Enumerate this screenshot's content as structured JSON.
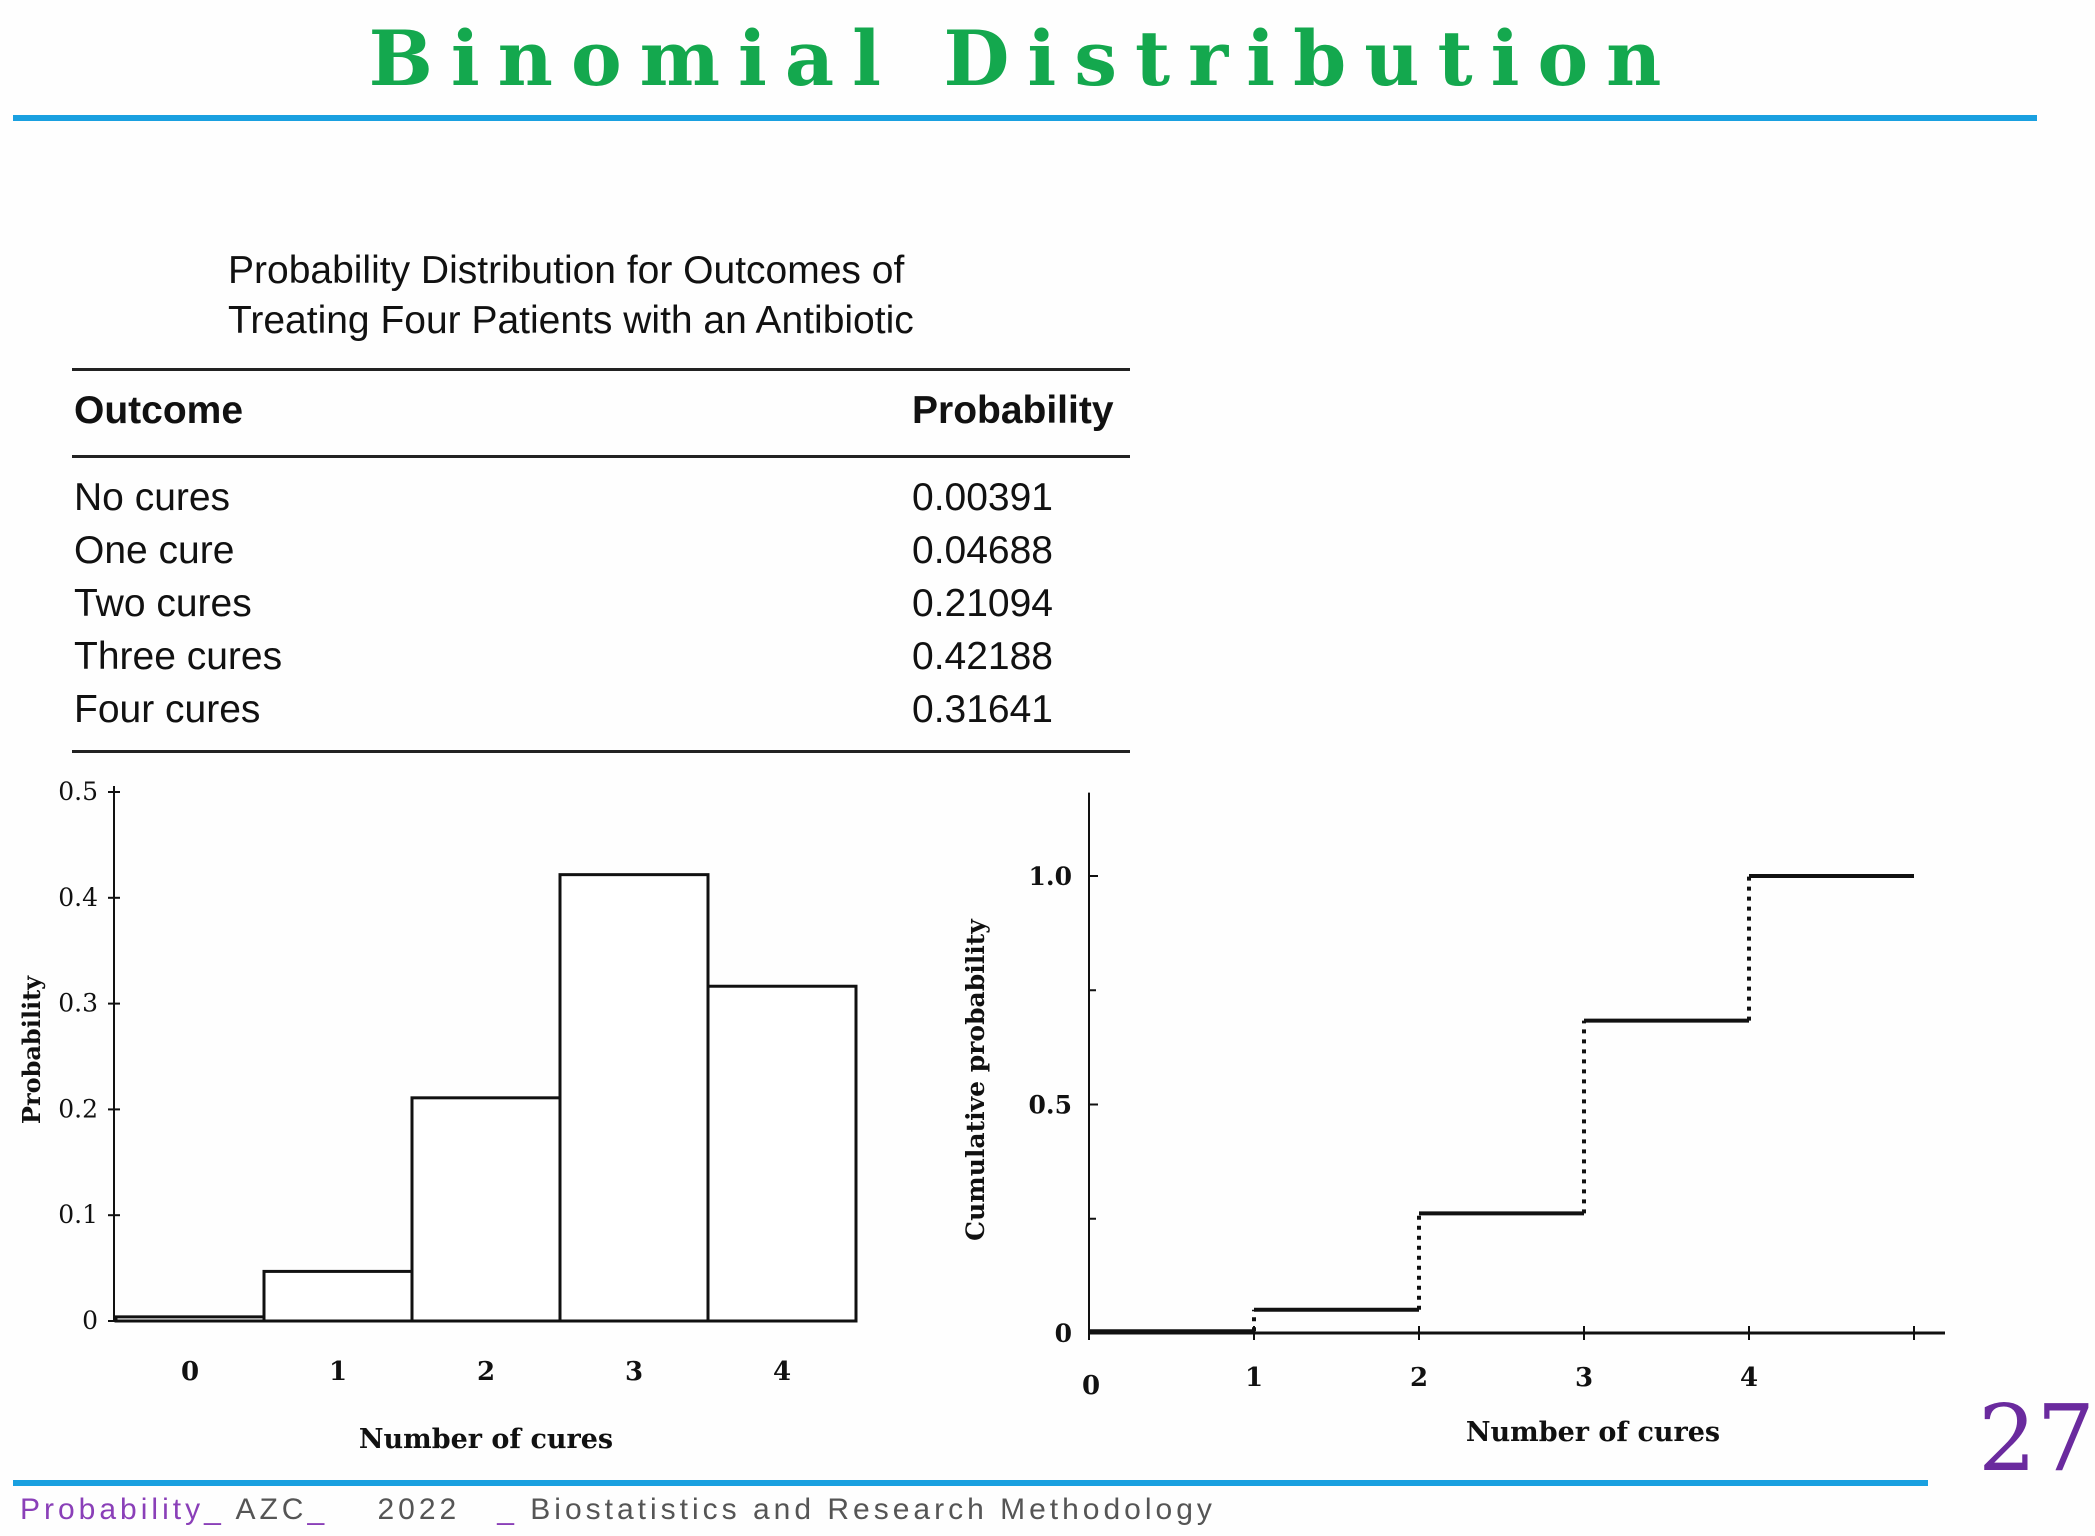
{
  "slide": {
    "title": "Binomial Distribution"
  },
  "table": {
    "title_line1": "Probability Distribution for Outcomes of",
    "title_line2": "Treating Four Patients with an Antibiotic",
    "headers": [
      "Outcome",
      "Probability"
    ],
    "rows": [
      {
        "outcome": "No cures",
        "probability": "0.00391"
      },
      {
        "outcome": "One cure",
        "probability": "0.04688"
      },
      {
        "outcome": "Two cures",
        "probability": "0.21094"
      },
      {
        "outcome": "Three cures",
        "probability": "0.42188"
      },
      {
        "outcome": "Four cures",
        "probability": "0.31641"
      }
    ]
  },
  "chart_data": [
    {
      "type": "bar",
      "categories": [
        "0",
        "1",
        "2",
        "3",
        "4"
      ],
      "values": [
        0.00391,
        0.04688,
        0.21094,
        0.42188,
        0.31641
      ],
      "xlabel": "Number of cures",
      "ylabel": "Probability",
      "ylim": [
        0,
        0.5
      ],
      "yticks": [
        0,
        0.1,
        0.2,
        0.3,
        0.4,
        0.5
      ],
      "ytick_labels": [
        "0",
        "0.1",
        "0.2",
        "0.3",
        "0.4",
        "0.5"
      ],
      "grid": false
    },
    {
      "type": "line",
      "style": "step",
      "x": [
        0,
        1,
        2,
        3,
        4
      ],
      "values": [
        0.00391,
        0.05079,
        0.26173,
        0.68361,
        1.0
      ],
      "xlim": [
        0,
        5
      ],
      "xtick_labels": [
        "0",
        "1",
        "2",
        "3",
        "4"
      ],
      "xlabel": "Number of cures",
      "ylabel": "Cumulative probability",
      "ylim": [
        0,
        1.2
      ],
      "ytick_labels": [
        "0",
        "0.5",
        "1.0"
      ],
      "grid": false
    }
  ],
  "footer": {
    "topic": "Probability",
    "author": "AZC",
    "year": "2022",
    "course": "Biostatistics and Research Methodology",
    "page_number": "27"
  },
  "colors": {
    "title": "#14a84e",
    "rule": "#1aa0e0",
    "accent": "#8a3fb8",
    "page_number": "#6a2a9e"
  }
}
